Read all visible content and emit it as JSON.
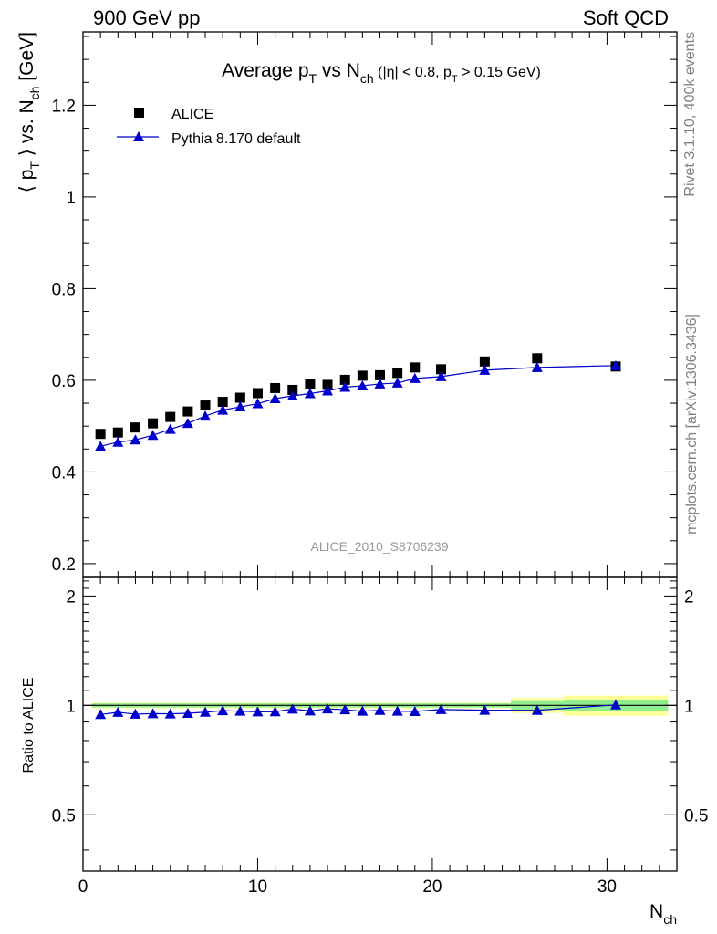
{
  "header": {
    "left": "900 GeV pp",
    "right": "Soft QCD"
  },
  "side": {
    "rivet": "Rivet 3.1.10,  400k events",
    "mcplots": "mcplots.cern.ch [arXiv:1306.3436]"
  },
  "chart_data": [
    {
      "type": "scatter",
      "title": {
        "prefix": "Average p",
        "sub1": "T",
        "mid": " vs N",
        "sub2": "ch",
        "cut_a": " (|η| < 0.8, p",
        "cut_sub": "T",
        "cut_b": " > 0.15 GeV)"
      },
      "ylabel": {
        "a": "⟨ p",
        "sub1": "T",
        "b": " ⟩ vs. N",
        "sub2": "ch",
        "c": " [GeV]"
      },
      "watermark": "ALICE_2010_S8706239",
      "xlim": [
        0,
        34
      ],
      "ylim": [
        0.17,
        1.36
      ],
      "yticks": [
        0.2,
        0.4,
        0.6,
        0.8,
        1.0,
        1.2
      ],
      "ytick_labels": [
        "0.2",
        "0.4",
        "0.6",
        "0.8",
        "1",
        "1.2"
      ],
      "legend_position": "top-left",
      "series": [
        {
          "name": "ALICE",
          "marker": "square",
          "color": "#000000",
          "x": [
            1,
            2,
            3,
            4,
            5,
            6,
            7,
            8,
            9,
            10,
            11,
            12,
            13,
            14,
            15,
            16,
            17,
            18,
            19,
            20.5,
            23,
            26,
            30.5
          ],
          "y": [
            0.483,
            0.486,
            0.497,
            0.506,
            0.52,
            0.532,
            0.545,
            0.553,
            0.562,
            0.572,
            0.583,
            0.579,
            0.591,
            0.59,
            0.601,
            0.61,
            0.611,
            0.616,
            0.628,
            0.624,
            0.641,
            0.648,
            0.63
          ]
        },
        {
          "name": "Pythia 8.170 default",
          "marker": "triangle",
          "color": "#0000cc",
          "x": [
            1,
            2,
            3,
            4,
            5,
            6,
            7,
            8,
            9,
            10,
            11,
            12,
            13,
            14,
            15,
            16,
            17,
            18,
            19,
            20.5,
            23,
            26,
            30.5
          ],
          "y": [
            0.456,
            0.465,
            0.47,
            0.48,
            0.493,
            0.506,
            0.522,
            0.535,
            0.542,
            0.549,
            0.56,
            0.566,
            0.571,
            0.577,
            0.585,
            0.588,
            0.592,
            0.594,
            0.604,
            0.608,
            0.622,
            0.628,
            0.632
          ]
        }
      ]
    },
    {
      "type": "line",
      "ylabel": "Ratio to ALICE",
      "xlabel": {
        "a": "N",
        "sub": "ch"
      },
      "xlim": [
        0,
        34
      ],
      "ylim": [
        0.35,
        2.25
      ],
      "xticks": [
        0,
        10,
        20,
        30
      ],
      "xtick_labels": [
        "0",
        "10",
        "20",
        "30"
      ],
      "yticks": [
        0.5,
        1,
        2
      ],
      "ytick_labels": [
        "0.5",
        "1",
        "2"
      ],
      "colors": {
        "band_inner": "#90ee90",
        "band_outer": "#ffff99",
        "ratio": "#0000cc"
      },
      "band_edges": [
        0.5,
        24.5,
        27.5,
        33.5
      ],
      "band_inner_halfwidth": [
        0.013,
        0.027,
        0.034
      ],
      "band_outer_halfwidth": [
        0.018,
        0.047,
        0.064
      ],
      "ratio_series": {
        "name": "Pythia 8.170 default",
        "x": [
          1,
          2,
          3,
          4,
          5,
          6,
          7,
          8,
          9,
          10,
          11,
          12,
          13,
          14,
          15,
          16,
          17,
          18,
          19,
          20.5,
          23,
          26,
          30.5
        ],
        "y": [
          0.944,
          0.957,
          0.946,
          0.949,
          0.948,
          0.951,
          0.958,
          0.967,
          0.964,
          0.96,
          0.961,
          0.977,
          0.966,
          0.978,
          0.973,
          0.964,
          0.969,
          0.964,
          0.962,
          0.974,
          0.97,
          0.969,
          1.003
        ]
      }
    }
  ]
}
